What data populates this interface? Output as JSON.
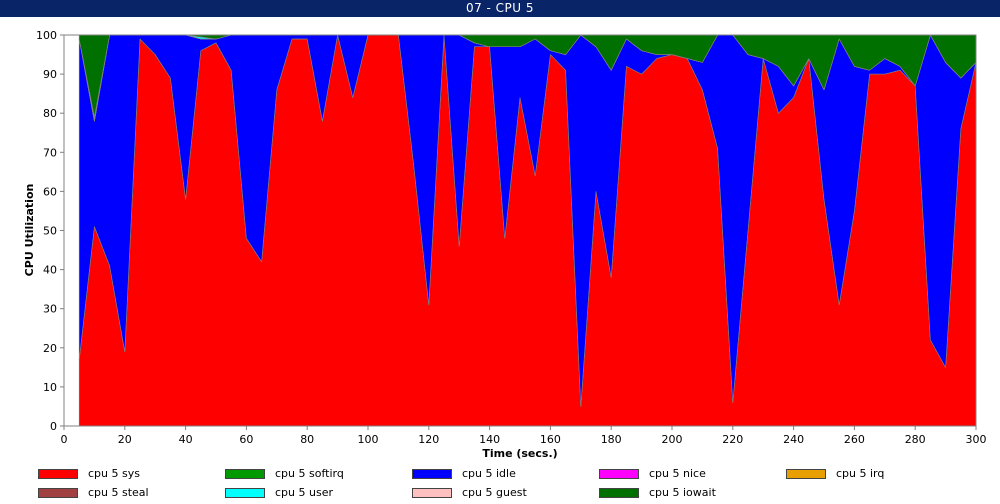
{
  "window": {
    "title": "07 - CPU 5"
  },
  "chart_data": {
    "type": "area",
    "stacked": true,
    "xlabel": "Time (secs.)",
    "ylabel": "CPU Utilization",
    "xlim": [
      0,
      300
    ],
    "ylim": [
      0,
      100
    ],
    "xticks": [
      0,
      20,
      40,
      60,
      80,
      100,
      120,
      140,
      160,
      180,
      200,
      220,
      240,
      260,
      280,
      300
    ],
    "yticks": [
      0,
      10,
      20,
      30,
      40,
      50,
      60,
      70,
      80,
      90,
      100
    ],
    "grid": false,
    "legend_position": "bottom",
    "x": [
      5,
      10,
      15,
      20,
      25,
      30,
      35,
      40,
      45,
      50,
      55,
      60,
      65,
      70,
      75,
      80,
      85,
      90,
      95,
      100,
      105,
      110,
      115,
      120,
      125,
      130,
      135,
      140,
      145,
      150,
      155,
      160,
      165,
      170,
      175,
      180,
      185,
      190,
      195,
      200,
      205,
      210,
      215,
      220,
      225,
      230,
      235,
      240,
      245,
      250,
      255,
      260,
      265,
      270,
      275,
      280,
      285,
      290,
      295,
      300
    ],
    "series": [
      {
        "name": "cpu 5 sys",
        "color": "#ff0000",
        "values": [
          17,
          51,
          41,
          19,
          99,
          95,
          89,
          58,
          96,
          98,
          91,
          48,
          42,
          86,
          99,
          99,
          78,
          100,
          84,
          100,
          100,
          100,
          67,
          31,
          100,
          46,
          97,
          97,
          48,
          84,
          64,
          95,
          91,
          5,
          60,
          38,
          92,
          90,
          94,
          95,
          94,
          86,
          71,
          6,
          50,
          94,
          80,
          84,
          94,
          58,
          31,
          55,
          90,
          90,
          91,
          87,
          22,
          15,
          76,
          93
        ]
      },
      {
        "name": "cpu 5 softirq",
        "color": "#009900",
        "values": [
          0,
          0,
          0,
          0,
          0,
          0,
          0,
          0,
          0,
          0,
          0,
          0,
          0,
          0,
          0,
          0,
          0,
          0,
          0,
          0,
          0,
          0,
          0,
          0,
          0,
          0,
          0,
          0,
          0,
          0,
          0,
          0,
          0,
          0,
          0,
          0,
          0,
          0,
          0,
          0,
          0,
          0,
          0,
          0,
          0,
          0,
          0,
          0,
          0,
          0,
          0,
          0,
          0,
          0,
          0,
          0,
          0,
          0,
          0,
          0
        ]
      },
      {
        "name": "cpu 5 idle",
        "color": "#0000ff",
        "values": [
          82,
          27,
          59,
          81,
          1,
          5,
          11,
          42,
          3,
          1,
          9,
          52,
          58,
          14,
          1,
          1,
          22,
          0,
          16,
          0,
          0,
          0,
          33,
          69,
          0,
          54,
          1,
          0,
          49,
          13,
          35,
          1,
          4,
          95,
          37,
          53,
          7,
          6,
          1,
          0,
          0,
          7,
          29,
          94,
          45,
          0,
          12,
          3,
          0,
          28,
          68,
          37,
          1,
          4,
          1,
          0,
          78,
          78,
          13,
          0
        ]
      },
      {
        "name": "cpu 5 nice",
        "color": "#ff00ff",
        "values": [
          0,
          0,
          0,
          0,
          0,
          0,
          0,
          0,
          0,
          0,
          0,
          0,
          0,
          0,
          0,
          0,
          0,
          0,
          0,
          0,
          0,
          0,
          0,
          0,
          0,
          0,
          0,
          0,
          0,
          0,
          0,
          0,
          0,
          0,
          0,
          0,
          0,
          0,
          0,
          0,
          0,
          0,
          0,
          0,
          0,
          0,
          0,
          0,
          0,
          0,
          0,
          0,
          0,
          0,
          0,
          0,
          0,
          0,
          0,
          0
        ]
      },
      {
        "name": "cpu 5 irq",
        "color": "#e8a000",
        "values": [
          0,
          0,
          0,
          0,
          0,
          0,
          0,
          0,
          0,
          0,
          0,
          0,
          0,
          0,
          0,
          0,
          0,
          0,
          0,
          0,
          0,
          0,
          0,
          0,
          0,
          0,
          0,
          0,
          0,
          0,
          0,
          0,
          0,
          0,
          0,
          0,
          0,
          0,
          0,
          0,
          0,
          0,
          0,
          0,
          0,
          0,
          0,
          0,
          0,
          0,
          0,
          0,
          0,
          0,
          0,
          0,
          0,
          0,
          0,
          0
        ]
      },
      {
        "name": "cpu 5 steal",
        "color": "#a04040",
        "values": [
          0,
          0,
          0,
          0,
          0,
          0,
          0,
          0,
          0,
          0,
          0,
          0,
          0,
          0,
          0,
          0,
          0,
          0,
          0,
          0,
          0,
          0,
          0,
          0,
          0,
          0,
          0,
          0,
          0,
          0,
          0,
          0,
          0,
          0,
          0,
          0,
          0,
          0,
          0,
          0,
          0,
          0,
          0,
          0,
          0,
          0,
          0,
          0,
          0,
          0,
          0,
          0,
          0,
          0,
          0,
          0,
          0,
          0,
          0,
          0
        ]
      },
      {
        "name": "cpu 5 user",
        "color": "#00ffff",
        "values": [
          0,
          0.5,
          0,
          0,
          0,
          0,
          0,
          0,
          0.5,
          0,
          0,
          0,
          0,
          0,
          0,
          0,
          0,
          0,
          0,
          0,
          0,
          0,
          0,
          0,
          0,
          0,
          0,
          0,
          0,
          0,
          0,
          0,
          0,
          0,
          0,
          0,
          0,
          0,
          0,
          0,
          0,
          0,
          0,
          0,
          0,
          0,
          0,
          0,
          0,
          0,
          0,
          0,
          0,
          0,
          0,
          0,
          0,
          0,
          0,
          0
        ]
      },
      {
        "name": "cpu 5 guest",
        "color": "#ffc0c0",
        "values": [
          0,
          0.5,
          0,
          0,
          0,
          0,
          0,
          0,
          0,
          0,
          0,
          0,
          0,
          0,
          0,
          0,
          0,
          0,
          0,
          0,
          0,
          0,
          0,
          0,
          0,
          0,
          0,
          0,
          0,
          0,
          0,
          0,
          0,
          0,
          0,
          0,
          0,
          0,
          0,
          0,
          0,
          0,
          0,
          0,
          0,
          0,
          0,
          0,
          0,
          0,
          0,
          0,
          0,
          0,
          0,
          0,
          0,
          0,
          0,
          0
        ]
      },
      {
        "name": "cpu 5 iowait",
        "color": "#007000",
        "values": [
          1,
          21,
          0,
          0,
          0,
          0,
          0,
          0,
          0.5,
          1,
          0,
          0,
          0,
          0,
          0,
          0,
          0,
          0,
          0,
          0,
          0,
          0,
          0,
          0,
          0,
          0,
          2,
          3,
          3,
          3,
          1,
          4,
          5,
          0,
          3,
          9,
          1,
          4,
          5,
          5,
          6,
          7,
          0,
          0,
          5,
          6,
          8,
          13,
          6,
          14,
          1,
          8,
          9,
          6,
          8,
          13,
          0,
          7,
          11,
          7
        ]
      }
    ]
  }
}
